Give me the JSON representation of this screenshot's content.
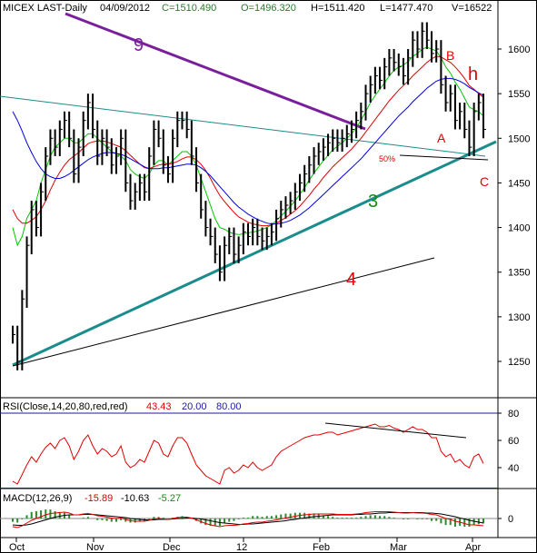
{
  "header": {
    "symbol": "MICEX LAST-Daily",
    "date": "04/09/2012",
    "close": "C=1510.490",
    "open": "O=1496.320",
    "high": "H=1511.420",
    "low": "L=1477.470",
    "volume": "V=16522"
  },
  "rsi_header": {
    "label": "RSI(Close,14,20,80,red,red)",
    "value": "43.43",
    "lower": "20.00",
    "upper": "80.00"
  },
  "macd_header": {
    "label": "MACD(12,26,9)",
    "macd": "-15.89",
    "signal": "-10.63",
    "hist": "-5.27"
  },
  "annotations": {
    "nine": "9",
    "three": "3",
    "four": "4",
    "h": "h",
    "b": "B",
    "a": "A",
    "c": "C",
    "fifty": "50%"
  },
  "colors": {
    "price": "#000000",
    "ma_green": "#00c800",
    "ma_red": "#e00000",
    "ma_blue": "#0000e0",
    "trend_teal": "#1a8c8c",
    "trend_purple": "#7a1f9c",
    "rsi_line": "#e00000",
    "rsi_bands": "#1a1aa0",
    "macd_line": "#e00000",
    "macd_signal": "#000000",
    "annot_red": "#e00000",
    "annot_green": "#138a13"
  },
  "chart_data": [
    {
      "type": "candlestick",
      "title": "MICEX LAST-Daily",
      "x_tick_labels": [
        "Oct",
        "Nov",
        "Dec",
        "12",
        "Feb",
        "Mar",
        "Apr"
      ],
      "y_tick_labels": [
        1250,
        1300,
        1350,
        1400,
        1450,
        1500,
        1550,
        1600
      ],
      "ylim": [
        1225,
        1645
      ],
      "series": [
        {
          "values": [
            1280,
            1250,
            1320,
            1380,
            1420,
            1400,
            1440,
            1480,
            1500,
            1490,
            1510,
            1520,
            1500,
            1460,
            1490,
            1520,
            1540,
            1510,
            1480,
            1500,
            1490,
            1470,
            1480,
            1500,
            1450,
            1430,
            1440,
            1450,
            1440,
            1480,
            1510,
            1500,
            1470,
            1460,
            1500,
            1520,
            1520,
            1510,
            1480,
            1450,
            1420,
            1400,
            1390,
            1370,
            1350,
            1380,
            1390,
            1370,
            1380,
            1395,
            1390,
            1400,
            1390,
            1385,
            1390,
            1395,
            1410,
            1420,
            1425,
            1430,
            1440,
            1450,
            1460,
            1470,
            1480,
            1485,
            1490,
            1495,
            1500,
            1495,
            1500,
            1505,
            1510,
            1520,
            1530,
            1550,
            1560,
            1570,
            1565,
            1580,
            1590,
            1585,
            1580,
            1570,
            1590,
            1610,
            1600,
            1620,
            1610,
            1595,
            1600,
            1560,
            1540,
            1550,
            1520,
            1530,
            1510,
            1490,
            1530,
            1540,
            1510
          ]
        },
        {
          "name": "",
          "color": "green",
          "values": [
            1400,
            1380,
            1390,
            1410,
            1420,
            1430,
            1450,
            1465,
            1480,
            1490,
            1495,
            1500,
            1500,
            1495,
            1495,
            1500,
            1505,
            1505,
            1500,
            1495,
            1490,
            1485,
            1483,
            1480,
            1475,
            1465,
            1460,
            1457,
            1455,
            1460,
            1470,
            1475,
            1475,
            1470,
            1475,
            1480,
            1485,
            1485,
            1480,
            1470,
            1455,
            1440,
            1425,
            1410,
            1400,
            1398,
            1395,
            1393,
            1392,
            1393,
            1394,
            1395,
            1396,
            1398,
            1400,
            1403,
            1408,
            1413,
            1418,
            1424,
            1430,
            1437,
            1445,
            1453,
            1461,
            1468,
            1475,
            1481,
            1487,
            1491,
            1495,
            1500,
            1505,
            1512,
            1520,
            1530,
            1540,
            1548,
            1555,
            1562,
            1570,
            1576,
            1580,
            1582,
            1586,
            1592,
            1595,
            1600,
            1602,
            1600,
            1598,
            1590,
            1580,
            1573,
            1563,
            1555,
            1545,
            1535,
            1532,
            1530,
            1525
          ]
        },
        {
          "name": "",
          "color": "red",
          "values": [
            1420,
            1410,
            1405,
            1405,
            1408,
            1412,
            1420,
            1430,
            1442,
            1453,
            1462,
            1470,
            1476,
            1480,
            1484,
            1489,
            1494,
            1496,
            1497,
            1497,
            1496,
            1494,
            1492,
            1490,
            1486,
            1481,
            1476,
            1471,
            1467,
            1466,
            1468,
            1470,
            1471,
            1471,
            1472,
            1474,
            1477,
            1479,
            1479,
            1476,
            1471,
            1464,
            1455,
            1445,
            1436,
            1429,
            1423,
            1417,
            1412,
            1409,
            1406,
            1404,
            1403,
            1402,
            1402,
            1403,
            1405,
            1408,
            1411,
            1415,
            1419,
            1424,
            1430,
            1436,
            1443,
            1449,
            1456,
            1462,
            1468,
            1473,
            1478,
            1483,
            1488,
            1494,
            1500,
            1507,
            1514,
            1521,
            1528,
            1535,
            1542,
            1548,
            1554,
            1559,
            1564,
            1570,
            1575,
            1580,
            1585,
            1589,
            1592,
            1591,
            1588,
            1585,
            1580,
            1574,
            1567,
            1559,
            1555,
            1550,
            1546
          ]
        },
        {
          "name": "",
          "color": "blue",
          "values": [
            1530,
            1520,
            1508,
            1495,
            1484,
            1474,
            1466,
            1460,
            1457,
            1455,
            1455,
            1457,
            1460,
            1464,
            1468,
            1472,
            1476,
            1479,
            1481,
            1483,
            1484,
            1484,
            1483,
            1482,
            1480,
            1477,
            1474,
            1471,
            1468,
            1466,
            1466,
            1466,
            1467,
            1467,
            1468,
            1469,
            1470,
            1471,
            1471,
            1470,
            1467,
            1463,
            1458,
            1452,
            1446,
            1440,
            1434,
            1428,
            1423,
            1419,
            1415,
            1412,
            1409,
            1407,
            1405,
            1404,
            1404,
            1405,
            1406,
            1408,
            1411,
            1414,
            1418,
            1422,
            1427,
            1432,
            1437,
            1442,
            1447,
            1452,
            1457,
            1462,
            1467,
            1472,
            1477,
            1483,
            1489,
            1495,
            1501,
            1507,
            1513,
            1519,
            1525,
            1530,
            1535,
            1541,
            1546,
            1551,
            1556,
            1560,
            1564,
            1566,
            1567,
            1567,
            1566,
            1564,
            1561,
            1557,
            1554,
            1551,
            1548
          ]
        }
      ]
    },
    {
      "type": "line",
      "title": "RSI(Close,14,20,80,red,red)",
      "y_tick_labels": [
        40,
        60,
        80
      ],
      "ylim": [
        22,
        85
      ],
      "series": [
        {
          "values": [
            30,
            28,
            35,
            42,
            48,
            44,
            50,
            55,
            58,
            54,
            60,
            62,
            56,
            46,
            52,
            60,
            64,
            56,
            50,
            54,
            52,
            48,
            50,
            56,
            44,
            40,
            42,
            46,
            44,
            52,
            60,
            58,
            50,
            48,
            56,
            62,
            62,
            58,
            50,
            42,
            38,
            34,
            32,
            30,
            28,
            38,
            40,
            36,
            38,
            42,
            40,
            44,
            40,
            38,
            40,
            42,
            48,
            52,
            54,
            56,
            58,
            60,
            62,
            63,
            64,
            64,
            65,
            66,
            66,
            64,
            65,
            66,
            67,
            68,
            69,
            70,
            71,
            72,
            70,
            70,
            71,
            69,
            68,
            66,
            68,
            70,
            68,
            68,
            66,
            62,
            62,
            52,
            48,
            50,
            44,
            46,
            42,
            40,
            48,
            50,
            43
          ]
        }
      ]
    },
    {
      "type": "line",
      "title": "MACD(12,26,9)",
      "y_tick_labels": [
        0
      ],
      "ylim": [
        -30,
        20
      ],
      "series": [
        {
          "values": [
            -18,
            -20,
            -16,
            -10,
            -4,
            0,
            4,
            8,
            11,
            12,
            13,
            14,
            12,
            8,
            8,
            10,
            11,
            9,
            6,
            5,
            3,
            1,
            0,
            1,
            -2,
            -5,
            -6,
            -6,
            -6,
            -4,
            -1,
            0,
            -1,
            -2,
            0,
            2,
            3,
            3,
            1,
            -3,
            -7,
            -11,
            -14,
            -16,
            -18,
            -16,
            -15,
            -15,
            -14,
            -12,
            -11,
            -9,
            -8,
            -8,
            -6,
            -5,
            -3,
            -1,
            1,
            3,
            5,
            7,
            8,
            9,
            10,
            10,
            10,
            10,
            10,
            9,
            9,
            9,
            9,
            10,
            11,
            13,
            14,
            15,
            15,
            15,
            15,
            14,
            13,
            12,
            12,
            13,
            12,
            12,
            11,
            9,
            8,
            4,
            0,
            -2,
            -6,
            -8,
            -11,
            -14,
            -14,
            -15,
            -16
          ]
        },
        {
          "values": [
            -14,
            -15,
            -15,
            -14,
            -12,
            -9,
            -6,
            -3,
            0,
            3,
            5,
            7,
            8,
            8,
            8,
            9,
            9,
            9,
            8,
            7,
            6,
            5,
            4,
            3,
            2,
            0,
            -1,
            -2,
            -3,
            -3,
            -3,
            -2,
            -2,
            -2,
            -1,
            0,
            0,
            1,
            1,
            0,
            -1,
            -3,
            -5,
            -7,
            -9,
            -10,
            -11,
            -12,
            -13,
            -13,
            -12,
            -12,
            -11,
            -10,
            -9,
            -8,
            -7,
            -6,
            -5,
            -3,
            -2,
            0,
            1,
            3,
            4,
            5,
            6,
            7,
            8,
            8,
            8,
            8,
            8,
            9,
            9,
            10,
            10,
            11,
            12,
            12,
            13,
            13,
            13,
            13,
            13,
            13,
            13,
            13,
            12,
            12,
            11,
            10,
            8,
            6,
            4,
            1,
            -1,
            -4,
            -6,
            -8,
            -10
          ]
        }
      ]
    }
  ]
}
